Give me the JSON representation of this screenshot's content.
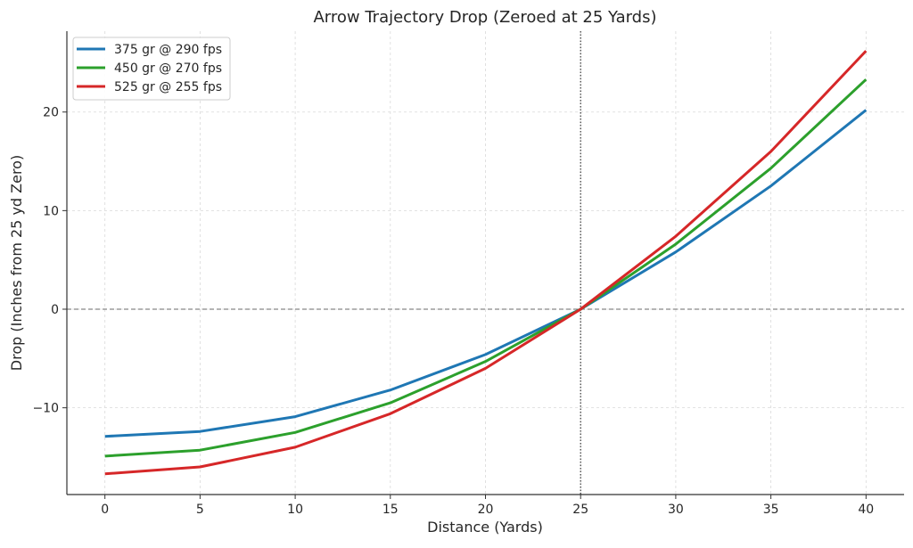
{
  "chart_data": {
    "type": "line",
    "title": "Arrow Trajectory Drop (Zeroed at 25 Yards)",
    "xlabel": "Distance (Yards)",
    "ylabel": "Drop (Inches from 25 yd Zero)",
    "x": [
      0,
      5,
      10,
      15,
      20,
      25,
      30,
      35,
      40
    ],
    "xlim": [
      -2,
      42
    ],
    "ylim": [
      -18.8,
      28.2
    ],
    "xticks": [
      0,
      5,
      10,
      15,
      20,
      25,
      30,
      35,
      40
    ],
    "yticks": [
      -10,
      0,
      10,
      20
    ],
    "ytick_labels": [
      "−10",
      "0",
      "10",
      "20"
    ],
    "grid": true,
    "legend_position": "top-left",
    "reference_lines": {
      "horizontal_y": 0,
      "vertical_x": 25
    },
    "series": [
      {
        "name": "375 gr @ 290 fps",
        "color": "#1f77b4",
        "values": [
          -12.9,
          -12.4,
          -10.9,
          -8.2,
          -4.6,
          0,
          5.8,
          12.5,
          20.2
        ]
      },
      {
        "name": "450 gr @ 270 fps",
        "color": "#2ca02c",
        "values": [
          -14.9,
          -14.3,
          -12.5,
          -9.5,
          -5.3,
          0,
          6.6,
          14.3,
          23.3
        ]
      },
      {
        "name": "525 gr @ 255 fps",
        "color": "#d62728",
        "values": [
          -16.7,
          -16.0,
          -14.0,
          -10.6,
          -6.0,
          0,
          7.4,
          16.0,
          26.2
        ]
      }
    ]
  }
}
